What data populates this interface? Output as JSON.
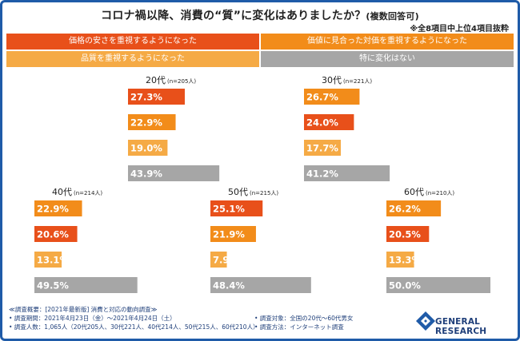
{
  "title": {
    "main": "コロナ禍以降、消費の“質”に変化はありましたか？",
    "sub": "(複数回答可)"
  },
  "note": "※全8項目中上位4項目抜粋",
  "legend": [
    {
      "label": "価格の安さを重視するようになった",
      "color": "#e8501a"
    },
    {
      "label": "価値に見合った対価を重視するようになった",
      "color": "#f28c1a"
    },
    {
      "label": "品質を重視するようになった",
      "color": "#f5aa45"
    },
    {
      "label": "特に変化はない",
      "color": "#a6a6a6"
    }
  ],
  "chart_data": [
    {
      "type": "bar",
      "group": "20代",
      "n": "(n=205人)",
      "categories": [
        "価格の安さを重視するようになった",
        "価値に見合った対価を重視するようになった",
        "品質を重視するようになった",
        "特に変化はない"
      ],
      "values": [
        27.3,
        22.9,
        19.0,
        43.9
      ],
      "value_labels": [
        "27.3%",
        "22.9%",
        "19.0%",
        "43.9%"
      ],
      "colors": [
        "#e8501a",
        "#f28c1a",
        "#f5aa45",
        "#a6a6a6"
      ]
    },
    {
      "type": "bar",
      "group": "30代",
      "n": "(n=221人)",
      "categories": [
        "価値に見合った対価を重視するようになった",
        "価格の安さを重視するようになった",
        "品質を重視するようになった",
        "特に変化はない"
      ],
      "values": [
        26.7,
        24.0,
        17.7,
        41.2
      ],
      "value_labels": [
        "26.7%",
        "24.0%",
        "17.7%",
        "41.2%"
      ],
      "colors": [
        "#f28c1a",
        "#e8501a",
        "#f5aa45",
        "#a6a6a6"
      ]
    },
    {
      "type": "bar",
      "group": "40代",
      "n": "(n=214人)",
      "categories": [
        "価値に見合った対価を重視するようになった",
        "価格の安さを重視するようになった",
        "品質を重視するようになった",
        "特に変化はない"
      ],
      "values": [
        22.9,
        20.6,
        13.1,
        49.5
      ],
      "value_labels": [
        "22.9%",
        "20.6%",
        "13.1%",
        "49.5%"
      ],
      "colors": [
        "#f28c1a",
        "#e8501a",
        "#f5aa45",
        "#a6a6a6"
      ]
    },
    {
      "type": "bar",
      "group": "50代",
      "n": "(n=215人)",
      "categories": [
        "価格の安さを重視するようになった",
        "価値に見合った対価を重視するようになった",
        "品質を重視するようになった",
        "特に変化はない"
      ],
      "values": [
        25.1,
        21.9,
        7.9,
        48.4
      ],
      "value_labels": [
        "25.1%",
        "21.9%",
        "7.9%",
        "48.4%"
      ],
      "colors": [
        "#e8501a",
        "#f28c1a",
        "#f5aa45",
        "#a6a6a6"
      ]
    },
    {
      "type": "bar",
      "group": "60代",
      "n": "(n=210人)",
      "categories": [
        "価値に見合った対価を重視するようになった",
        "価格の安さを重視するようになった",
        "品質を重視するようになった",
        "特に変化はない"
      ],
      "values": [
        26.2,
        20.5,
        13.3,
        50.0
      ],
      "value_labels": [
        "26.2%",
        "20.5%",
        "13.3%",
        "50.0%"
      ],
      "colors": [
        "#f28c1a",
        "#e8501a",
        "#f5aa45",
        "#a6a6a6"
      ]
    }
  ],
  "footer": {
    "left": [
      "≪調査概要：[2021年最新版] 消費と対応の動向調査≫",
      "• 調査期間：2021年4月23日（金）～2021年4月24日（土）",
      "• 調査人数：1,065人（20代205人、30代221人、40代214人、50代215人、60代210人）"
    ],
    "right": [
      "• 調査対象：全国の20代～60代男女",
      "• 調査方法：インターネット調査"
    ]
  },
  "logo": {
    "text": "GENERAL RESEARCH",
    "color": "#1f3f7a"
  }
}
